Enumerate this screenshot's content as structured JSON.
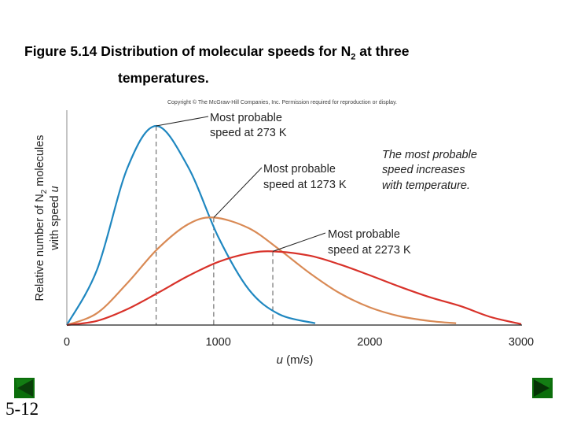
{
  "slide": {
    "title_line1": "Figure 5.14  Distribution of molecular speeds for N",
    "title_sub": "2",
    "title_line1_end": " at three",
    "title_line2": "temperatures.",
    "slide_number": "5-12",
    "nav": {
      "prev_icon": "triangle-left-icon",
      "next_icon": "triangle-right-icon",
      "color": "#0b6e0b"
    }
  },
  "chart_data": {
    "type": "line",
    "copyright": "Copyright © The McGraw-Hill Companies, Inc. Permission required for reproduction or display.",
    "xlabel_var": "u",
    "xlabel_unit": " (m/s)",
    "ylabel_line1_pre": "Relative number of N",
    "ylabel_sub": "2",
    "ylabel_line1_post": " molecules",
    "ylabel_line2_pre": "with speed ",
    "ylabel_line2_var": "u",
    "xlim": [
      0,
      3000
    ],
    "ylim": [
      0,
      1.08
    ],
    "xticks": [
      0,
      1000,
      2000,
      3000
    ],
    "grid": false,
    "series": [
      {
        "temperature": "273 K",
        "color": "#1f87c0",
        "most_probable_speed": 590,
        "x": [
          0,
          200,
          400,
          590,
          800,
          1000,
          1200,
          1400,
          1640
        ],
        "y": [
          0,
          0.279,
          0.789,
          1.0,
          0.795,
          0.442,
          0.18,
          0.055,
          0.009
        ]
      },
      {
        "temperature": "1273 K",
        "color": "#d98a55",
        "most_probable_speed": 970,
        "x": [
          0,
          200,
          400,
          600,
          800,
          970,
          1200,
          1400,
          1600,
          1800,
          2000,
          2200,
          2400,
          2570
        ],
        "y": [
          0,
          0.06,
          0.211,
          0.383,
          0.506,
          0.54,
          0.487,
          0.381,
          0.263,
          0.161,
          0.089,
          0.044,
          0.02,
          0.009
        ]
      },
      {
        "temperature": "2273 K",
        "color": "#d8322a",
        "most_probable_speed": 1360,
        "x": [
          0,
          200,
          400,
          600,
          800,
          1000,
          1200,
          1360,
          1600,
          1800,
          2000,
          2200,
          2400,
          2600,
          2800,
          3000
        ],
        "y": [
          0,
          0.021,
          0.08,
          0.161,
          0.246,
          0.317,
          0.36,
          0.37,
          0.349,
          0.305,
          0.25,
          0.192,
          0.139,
          0.095,
          0.04,
          0.005
        ]
      }
    ],
    "annotations": [
      {
        "line1": "Most probable",
        "line2": "speed at 273 K"
      },
      {
        "line1": "Most probable",
        "line2": "speed at 1273 K"
      },
      {
        "line1": "Most probable",
        "line2": "speed at 2273 K"
      }
    ],
    "note": [
      "The most probable",
      "speed increases",
      "with temperature."
    ]
  }
}
